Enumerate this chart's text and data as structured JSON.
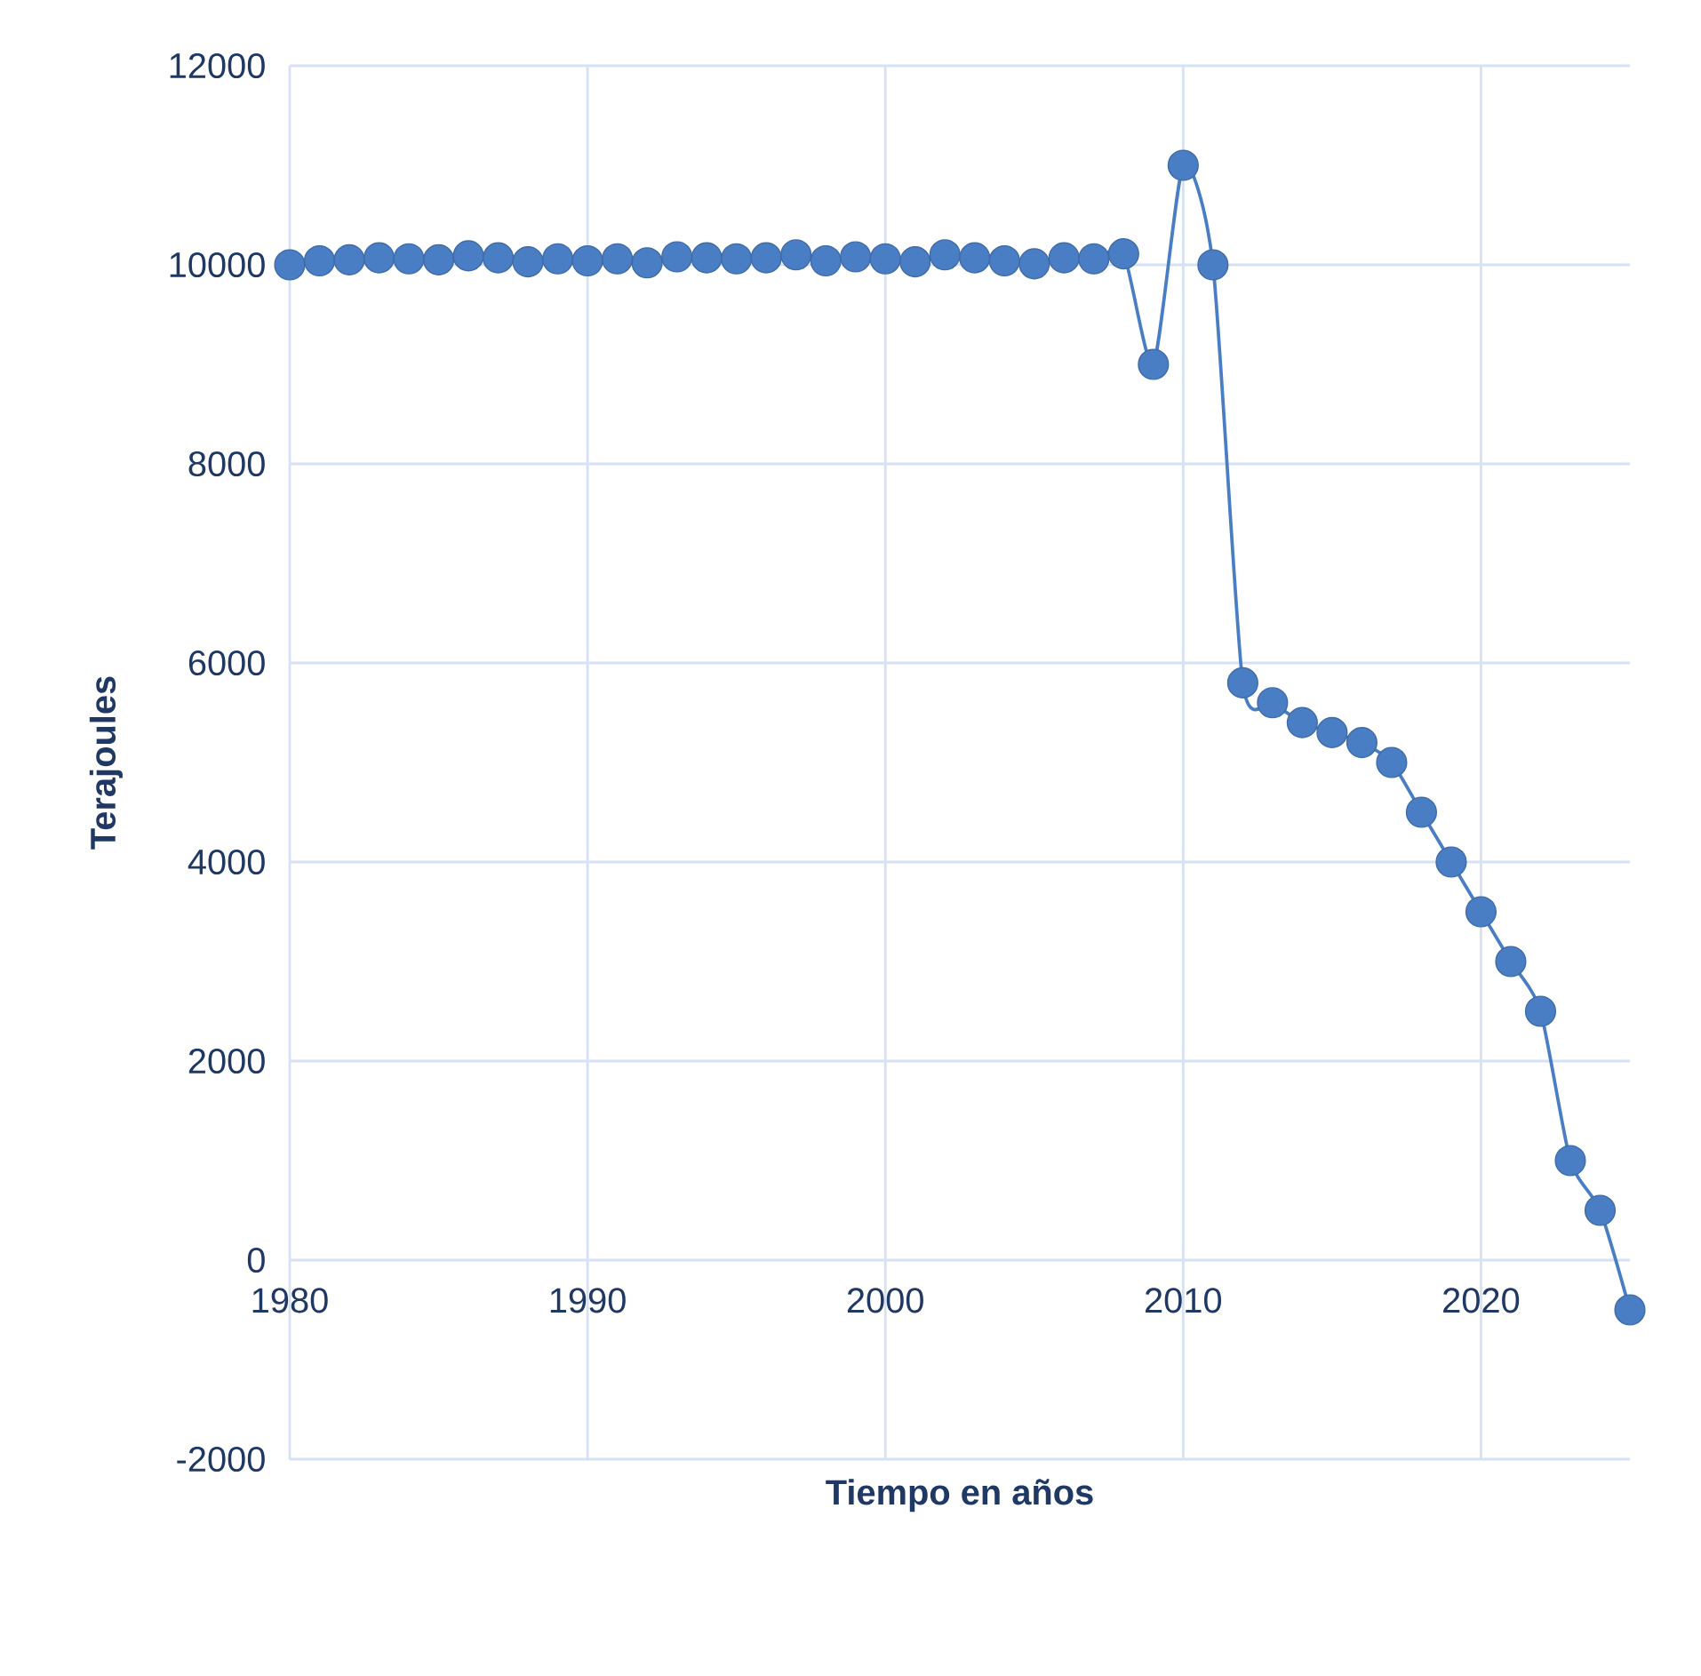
{
  "chart_data": {
    "type": "line",
    "xlabel": "Tiempo en años",
    "ylabel": "Terajoules",
    "x": [
      1980,
      1981,
      1982,
      1983,
      1984,
      1985,
      1986,
      1987,
      1988,
      1989,
      1990,
      1991,
      1992,
      1993,
      1994,
      1995,
      1996,
      1997,
      1998,
      1999,
      2000,
      2001,
      2002,
      2003,
      2004,
      2005,
      2006,
      2007,
      2008,
      2009,
      2010,
      2011,
      2012,
      2013,
      2014,
      2015,
      2016,
      2017,
      2018,
      2019,
      2020,
      2021,
      2022,
      2023,
      2024,
      2025
    ],
    "series": [
      {
        "color": "#4a7ec4",
        "values": [
          10000,
          10040,
          10050,
          10070,
          10060,
          10050,
          10090,
          10070,
          10030,
          10060,
          10040,
          10060,
          10020,
          10080,
          10070,
          10060,
          10070,
          10100,
          10040,
          10080,
          10060,
          10030,
          10100,
          10070,
          10040,
          10010,
          10070,
          10060,
          10110,
          9000,
          11000,
          10000,
          5800,
          5600,
          5400,
          5300,
          5200,
          5000,
          4500,
          4000,
          3500,
          3000,
          2500,
          1000,
          500,
          -500
        ]
      }
    ],
    "xlim": [
      1980,
      2025
    ],
    "ylim": [
      -2000,
      12000
    ],
    "xticks": [
      1980,
      1990,
      2000,
      2010,
      2020
    ],
    "yticks": [
      -2000,
      0,
      2000,
      4000,
      6000,
      8000,
      10000,
      12000
    ],
    "grid": true,
    "marker": "circle",
    "line_style": "solid"
  }
}
